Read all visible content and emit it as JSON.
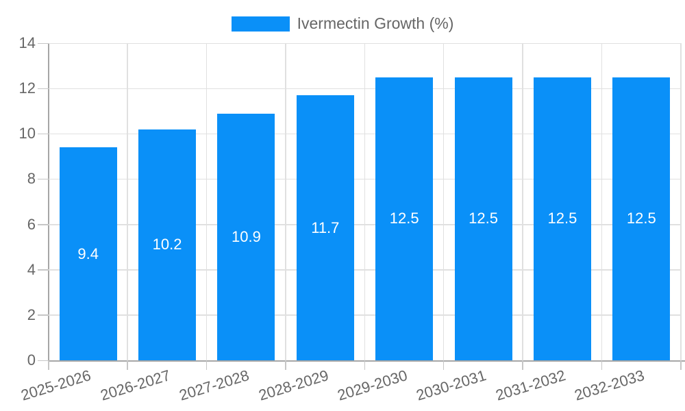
{
  "legend": {
    "label": "Ivermectin Growth (%)",
    "swatch_color": "#0a90f8"
  },
  "chart_data": {
    "type": "bar",
    "title": "",
    "categories": [
      "2025-2026",
      "2026-2027",
      "2027-2028",
      "2028-2029",
      "2029-2030",
      "2030-2031",
      "2031-2032",
      "2032-2033"
    ],
    "series": [
      {
        "name": "Ivermectin Growth (%)",
        "color": "#0a90f8",
        "values": [
          9.4,
          10.2,
          10.9,
          11.7,
          12.5,
          12.5,
          12.5,
          12.5
        ]
      }
    ],
    "value_labels": [
      "9.4",
      "10.2",
      "10.9",
      "11.7",
      "12.5",
      "12.5",
      "12.5",
      "12.5"
    ],
    "xlabel": "",
    "ylabel": "",
    "ylim": [
      0,
      14
    ],
    "yticks": [
      0,
      2,
      4,
      6,
      8,
      10,
      12,
      14
    ],
    "grid": true,
    "legend_position": "top",
    "x_label_rotation_deg": -17
  },
  "colors": {
    "bar": "#0a90f8",
    "grid": "#e0e0e0",
    "axis": "#a6a6a6",
    "tick": "#c6c6c6",
    "axis_text": "#666666",
    "value_label": "#ffffff",
    "background": "#ffffff"
  }
}
